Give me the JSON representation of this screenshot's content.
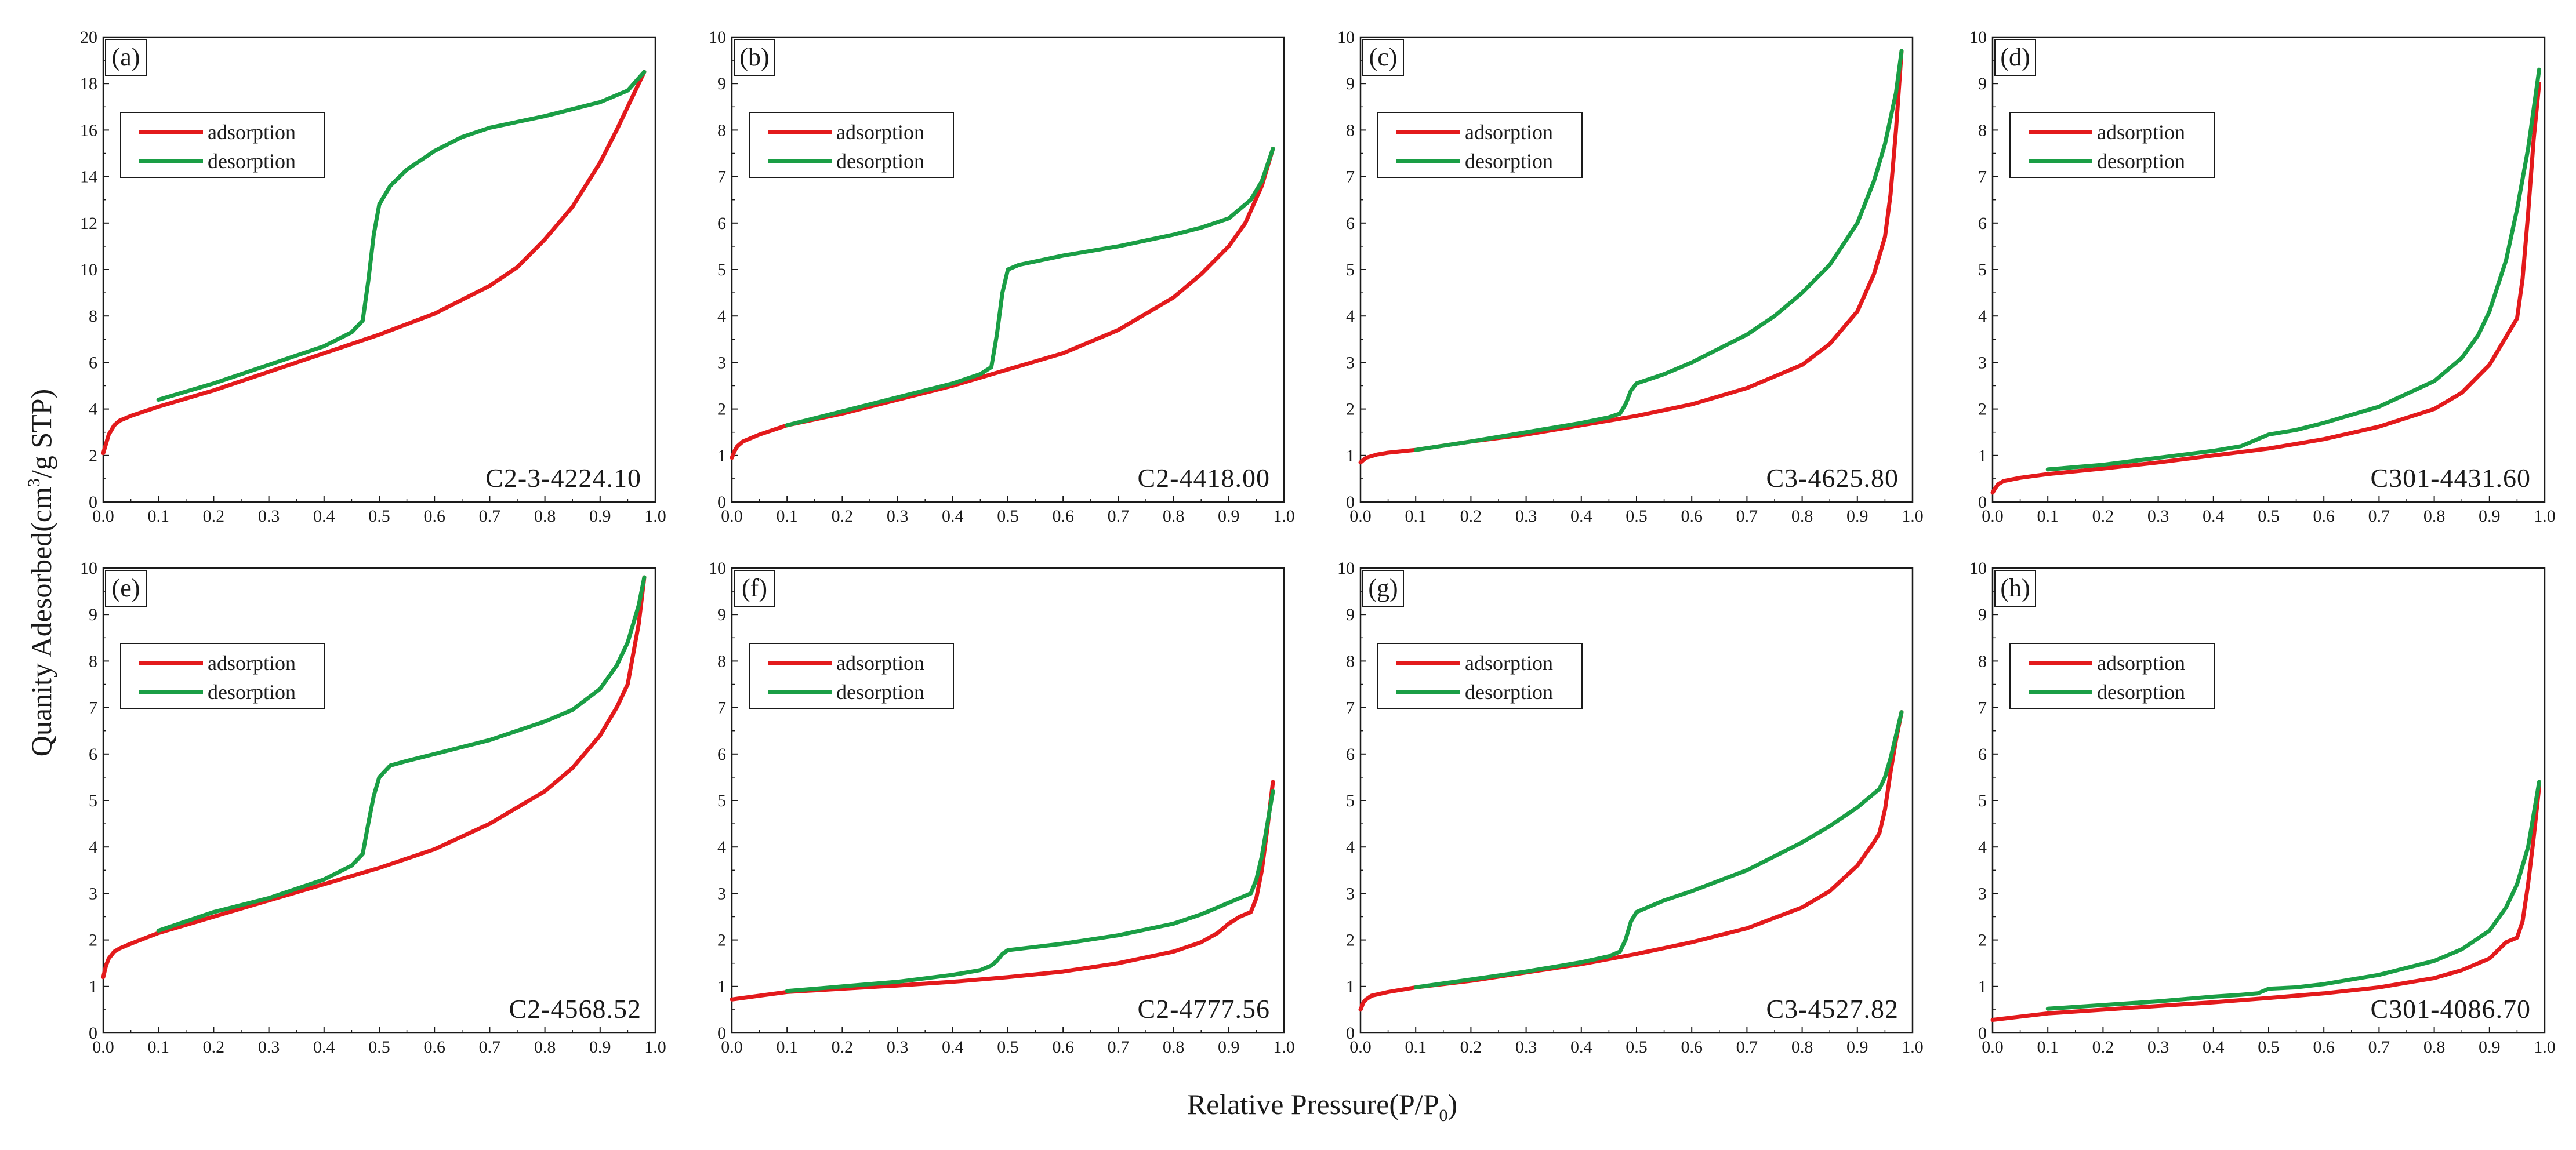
{
  "figure": {
    "xlabel": "Relative Pressure(P/P",
    "xlabel_sub": "0",
    "xlabel_end": ")",
    "ylabel_pre": "Quanity Adesorbed(cm",
    "ylabel_sup": "3",
    "ylabel_post": "/g STP)"
  },
  "legend": {
    "adsorption": "adsorption",
    "desorption": "desorption"
  },
  "colors": {
    "adsorption": "#e31a1c",
    "desorption": "#1a9e45",
    "frame": "#1a1a1a"
  },
  "chart_data": [
    {
      "panel": "(a)",
      "sample": "C2-3-4224.10",
      "type": "line",
      "xlim": [
        0,
        1.0
      ],
      "ylim": [
        0,
        20
      ],
      "xticks": [
        "0.0",
        "0.1",
        "0.2",
        "0.3",
        "0.4",
        "0.5",
        "0.6",
        "0.7",
        "0.8",
        "0.9",
        "1.0"
      ],
      "yticks": [
        "0",
        "2",
        "4",
        "6",
        "8",
        "10",
        "12",
        "14",
        "16",
        "18",
        "20"
      ],
      "series": [
        {
          "name": "adsorption",
          "x": [
            0.0,
            0.005,
            0.01,
            0.02,
            0.03,
            0.05,
            0.1,
            0.2,
            0.3,
            0.4,
            0.5,
            0.6,
            0.7,
            0.75,
            0.8,
            0.85,
            0.9,
            0.93,
            0.96,
            0.98
          ],
          "y": [
            2.1,
            2.5,
            2.9,
            3.3,
            3.5,
            3.7,
            4.1,
            4.8,
            5.6,
            6.4,
            7.2,
            8.1,
            9.3,
            10.1,
            11.3,
            12.7,
            14.6,
            16.0,
            17.5,
            18.5
          ]
        },
        {
          "name": "desorption",
          "x": [
            0.1,
            0.2,
            0.3,
            0.4,
            0.45,
            0.47,
            0.48,
            0.49,
            0.5,
            0.52,
            0.55,
            0.6,
            0.65,
            0.7,
            0.8,
            0.9,
            0.95,
            0.98
          ],
          "y": [
            4.4,
            5.1,
            5.9,
            6.7,
            7.3,
            7.8,
            9.5,
            11.5,
            12.8,
            13.6,
            14.3,
            15.1,
            15.7,
            16.1,
            16.6,
            17.2,
            17.7,
            18.5
          ]
        }
      ]
    },
    {
      "panel": "(b)",
      "sample": "C2-4418.00",
      "type": "line",
      "xlim": [
        0,
        1.0
      ],
      "ylim": [
        0,
        10
      ],
      "xticks": [
        "0.0",
        "0.1",
        "0.2",
        "0.3",
        "0.4",
        "0.5",
        "0.6",
        "0.7",
        "0.8",
        "0.9",
        "1.0"
      ],
      "yticks": [
        "0",
        "1",
        "2",
        "3",
        "4",
        "5",
        "6",
        "7",
        "8",
        "9",
        "10"
      ],
      "series": [
        {
          "name": "adsorption",
          "x": [
            0.0,
            0.005,
            0.01,
            0.02,
            0.05,
            0.1,
            0.2,
            0.3,
            0.4,
            0.5,
            0.6,
            0.7,
            0.8,
            0.85,
            0.9,
            0.93,
            0.96,
            0.98
          ],
          "y": [
            0.95,
            1.1,
            1.2,
            1.3,
            1.45,
            1.65,
            1.9,
            2.2,
            2.5,
            2.85,
            3.2,
            3.7,
            4.4,
            4.9,
            5.5,
            6.0,
            6.8,
            7.6
          ]
        },
        {
          "name": "desorption",
          "x": [
            0.1,
            0.2,
            0.3,
            0.4,
            0.45,
            0.47,
            0.48,
            0.49,
            0.5,
            0.52,
            0.6,
            0.7,
            0.8,
            0.85,
            0.9,
            0.94,
            0.96,
            0.98
          ],
          "y": [
            1.65,
            1.95,
            2.25,
            2.55,
            2.75,
            2.9,
            3.6,
            4.5,
            5.0,
            5.1,
            5.3,
            5.5,
            5.75,
            5.9,
            6.1,
            6.5,
            6.9,
            7.6
          ]
        }
      ]
    },
    {
      "panel": "(c)",
      "sample": "C3-4625.80",
      "type": "line",
      "xlim": [
        0,
        1.0
      ],
      "ylim": [
        0,
        10
      ],
      "xticks": [
        "0.0",
        "0.1",
        "0.2",
        "0.3",
        "0.4",
        "0.5",
        "0.6",
        "0.7",
        "0.8",
        "0.9",
        "1.0"
      ],
      "yticks": [
        "0",
        "1",
        "2",
        "3",
        "4",
        "5",
        "6",
        "7",
        "8",
        "9",
        "10"
      ],
      "series": [
        {
          "name": "adsorption",
          "x": [
            0.0,
            0.01,
            0.03,
            0.05,
            0.1,
            0.2,
            0.3,
            0.4,
            0.5,
            0.6,
            0.7,
            0.8,
            0.85,
            0.9,
            0.93,
            0.95,
            0.96,
            0.97,
            0.98
          ],
          "y": [
            0.85,
            0.95,
            1.02,
            1.06,
            1.12,
            1.3,
            1.45,
            1.65,
            1.85,
            2.1,
            2.45,
            2.95,
            3.4,
            4.1,
            4.9,
            5.7,
            6.6,
            8.0,
            9.7
          ]
        },
        {
          "name": "desorption",
          "x": [
            0.1,
            0.2,
            0.3,
            0.4,
            0.45,
            0.47,
            0.48,
            0.49,
            0.5,
            0.55,
            0.6,
            0.65,
            0.7,
            0.75,
            0.8,
            0.85,
            0.9,
            0.93,
            0.95,
            0.97,
            0.98
          ],
          "y": [
            1.12,
            1.3,
            1.5,
            1.7,
            1.82,
            1.9,
            2.1,
            2.4,
            2.55,
            2.75,
            3.0,
            3.3,
            3.6,
            4.0,
            4.5,
            5.1,
            6.0,
            6.9,
            7.7,
            8.8,
            9.7
          ]
        }
      ]
    },
    {
      "panel": "(d)",
      "sample": "C301-4431.60",
      "type": "line",
      "xlim": [
        0,
        1.0
      ],
      "ylim": [
        0,
        10
      ],
      "xticks": [
        "0.0",
        "0.1",
        "0.2",
        "0.3",
        "0.4",
        "0.5",
        "0.6",
        "0.7",
        "0.8",
        "0.9",
        "1.0"
      ],
      "yticks": [
        "0",
        "1",
        "2",
        "3",
        "4",
        "5",
        "6",
        "7",
        "8",
        "9",
        "10"
      ],
      "series": [
        {
          "name": "adsorption",
          "x": [
            0.0,
            0.005,
            0.01,
            0.02,
            0.05,
            0.1,
            0.2,
            0.3,
            0.4,
            0.5,
            0.6,
            0.7,
            0.8,
            0.85,
            0.9,
            0.93,
            0.95,
            0.96,
            0.97,
            0.98,
            0.99
          ],
          "y": [
            0.2,
            0.3,
            0.38,
            0.45,
            0.52,
            0.6,
            0.72,
            0.85,
            1.0,
            1.15,
            1.35,
            1.62,
            2.0,
            2.35,
            2.95,
            3.55,
            3.95,
            4.8,
            6.2,
            7.8,
            9.0
          ]
        },
        {
          "name": "desorption",
          "x": [
            0.1,
            0.2,
            0.3,
            0.4,
            0.45,
            0.48,
            0.5,
            0.55,
            0.6,
            0.7,
            0.8,
            0.85,
            0.88,
            0.9,
            0.93,
            0.95,
            0.97,
            0.99
          ],
          "y": [
            0.7,
            0.8,
            0.95,
            1.1,
            1.2,
            1.35,
            1.45,
            1.55,
            1.7,
            2.05,
            2.6,
            3.1,
            3.6,
            4.1,
            5.2,
            6.3,
            7.6,
            9.3
          ]
        }
      ]
    },
    {
      "panel": "(e)",
      "sample": "C2-4568.52",
      "type": "line",
      "xlim": [
        0,
        1.0
      ],
      "ylim": [
        0,
        10
      ],
      "xticks": [
        "0.0",
        "0.1",
        "0.2",
        "0.3",
        "0.4",
        "0.5",
        "0.6",
        "0.7",
        "0.8",
        "0.9",
        "1.0"
      ],
      "yticks": [
        "0",
        "1",
        "2",
        "3",
        "4",
        "5",
        "6",
        "7",
        "8",
        "9",
        "10"
      ],
      "series": [
        {
          "name": "adsorption",
          "x": [
            0.0,
            0.005,
            0.01,
            0.02,
            0.03,
            0.05,
            0.1,
            0.2,
            0.3,
            0.4,
            0.5,
            0.6,
            0.7,
            0.8,
            0.85,
            0.9,
            0.93,
            0.95,
            0.97,
            0.98
          ],
          "y": [
            1.2,
            1.45,
            1.6,
            1.75,
            1.82,
            1.92,
            2.15,
            2.5,
            2.85,
            3.2,
            3.55,
            3.95,
            4.5,
            5.2,
            5.7,
            6.4,
            7.0,
            7.5,
            8.8,
            9.8
          ]
        },
        {
          "name": "desorption",
          "x": [
            0.1,
            0.2,
            0.3,
            0.4,
            0.45,
            0.47,
            0.48,
            0.49,
            0.5,
            0.52,
            0.55,
            0.6,
            0.7,
            0.8,
            0.85,
            0.9,
            0.93,
            0.95,
            0.97,
            0.98
          ],
          "y": [
            2.2,
            2.6,
            2.9,
            3.3,
            3.6,
            3.85,
            4.5,
            5.1,
            5.5,
            5.75,
            5.85,
            6.0,
            6.3,
            6.7,
            6.95,
            7.4,
            7.9,
            8.4,
            9.2,
            9.8
          ]
        }
      ]
    },
    {
      "panel": "(f)",
      "sample": "C2-4777.56",
      "type": "line",
      "xlim": [
        0,
        1.0
      ],
      "ylim": [
        0,
        10
      ],
      "xticks": [
        "0.0",
        "0.1",
        "0.2",
        "0.3",
        "0.4",
        "0.5",
        "0.6",
        "0.7",
        "0.8",
        "0.9",
        "1.0"
      ],
      "yticks": [
        "0",
        "1",
        "2",
        "3",
        "4",
        "5",
        "6",
        "7",
        "8",
        "9",
        "10"
      ],
      "series": [
        {
          "name": "adsorption",
          "x": [
            0.0,
            0.05,
            0.1,
            0.2,
            0.3,
            0.4,
            0.5,
            0.6,
            0.7,
            0.8,
            0.85,
            0.88,
            0.9,
            0.92,
            0.94,
            0.95,
            0.96,
            0.97,
            0.98
          ],
          "y": [
            0.72,
            0.8,
            0.88,
            0.95,
            1.02,
            1.1,
            1.2,
            1.32,
            1.5,
            1.75,
            1.95,
            2.15,
            2.35,
            2.5,
            2.6,
            2.9,
            3.5,
            4.4,
            5.4
          ]
        },
        {
          "name": "desorption",
          "x": [
            0.1,
            0.2,
            0.3,
            0.4,
            0.45,
            0.47,
            0.48,
            0.49,
            0.5,
            0.55,
            0.6,
            0.7,
            0.8,
            0.85,
            0.88,
            0.9,
            0.92,
            0.94,
            0.95,
            0.96,
            0.98
          ],
          "y": [
            0.9,
            1.0,
            1.1,
            1.25,
            1.35,
            1.45,
            1.55,
            1.7,
            1.78,
            1.85,
            1.92,
            2.1,
            2.35,
            2.55,
            2.7,
            2.8,
            2.9,
            3.0,
            3.3,
            3.8,
            5.2
          ]
        }
      ]
    },
    {
      "panel": "(g)",
      "sample": "C3-4527.82",
      "type": "line",
      "xlim": [
        0,
        1.0
      ],
      "ylim": [
        0,
        10
      ],
      "xticks": [
        "0.0",
        "0.1",
        "0.2",
        "0.3",
        "0.4",
        "0.5",
        "0.6",
        "0.7",
        "0.8",
        "0.9",
        "1.0"
      ],
      "yticks": [
        "0",
        "1",
        "2",
        "3",
        "4",
        "5",
        "6",
        "7",
        "8",
        "9",
        "10"
      ],
      "series": [
        {
          "name": "adsorption",
          "x": [
            0.0,
            0.005,
            0.01,
            0.02,
            0.05,
            0.1,
            0.2,
            0.3,
            0.4,
            0.5,
            0.6,
            0.7,
            0.8,
            0.85,
            0.9,
            0.93,
            0.94,
            0.95,
            0.96,
            0.97,
            0.98
          ],
          "y": [
            0.5,
            0.65,
            0.72,
            0.8,
            0.88,
            0.98,
            1.12,
            1.3,
            1.48,
            1.7,
            1.95,
            2.25,
            2.7,
            3.05,
            3.6,
            4.1,
            4.3,
            4.8,
            5.6,
            6.3,
            6.9
          ]
        },
        {
          "name": "desorption",
          "x": [
            0.1,
            0.2,
            0.3,
            0.4,
            0.45,
            0.47,
            0.48,
            0.49,
            0.5,
            0.55,
            0.6,
            0.7,
            0.8,
            0.85,
            0.9,
            0.94,
            0.95,
            0.96,
            0.98
          ],
          "y": [
            0.98,
            1.15,
            1.32,
            1.52,
            1.65,
            1.75,
            2.0,
            2.4,
            2.6,
            2.85,
            3.05,
            3.5,
            4.1,
            4.45,
            4.85,
            5.25,
            5.5,
            5.9,
            6.9
          ]
        }
      ]
    },
    {
      "panel": "(h)",
      "sample": "C301-4086.70",
      "type": "line",
      "xlim": [
        0,
        1.0
      ],
      "ylim": [
        0,
        10
      ],
      "xticks": [
        "0.0",
        "0.1",
        "0.2",
        "0.3",
        "0.4",
        "0.5",
        "0.6",
        "0.7",
        "0.8",
        "0.9",
        "1.0"
      ],
      "yticks": [
        "0",
        "1",
        "2",
        "3",
        "4",
        "5",
        "6",
        "7",
        "8",
        "9",
        "10"
      ],
      "series": [
        {
          "name": "adsorption",
          "x": [
            0.0,
            0.05,
            0.1,
            0.2,
            0.3,
            0.4,
            0.5,
            0.6,
            0.7,
            0.8,
            0.85,
            0.9,
            0.93,
            0.95,
            0.96,
            0.97,
            0.98,
            0.99
          ],
          "y": [
            0.28,
            0.35,
            0.42,
            0.5,
            0.58,
            0.66,
            0.75,
            0.85,
            0.98,
            1.18,
            1.35,
            1.6,
            1.95,
            2.05,
            2.4,
            3.2,
            4.2,
            5.3
          ]
        },
        {
          "name": "desorption",
          "x": [
            0.1,
            0.2,
            0.3,
            0.4,
            0.45,
            0.48,
            0.5,
            0.55,
            0.6,
            0.7,
            0.8,
            0.85,
            0.9,
            0.93,
            0.95,
            0.97,
            0.99
          ],
          "y": [
            0.52,
            0.6,
            0.68,
            0.78,
            0.82,
            0.85,
            0.95,
            0.98,
            1.05,
            1.25,
            1.55,
            1.8,
            2.2,
            2.7,
            3.2,
            4.0,
            5.4
          ]
        }
      ]
    }
  ]
}
